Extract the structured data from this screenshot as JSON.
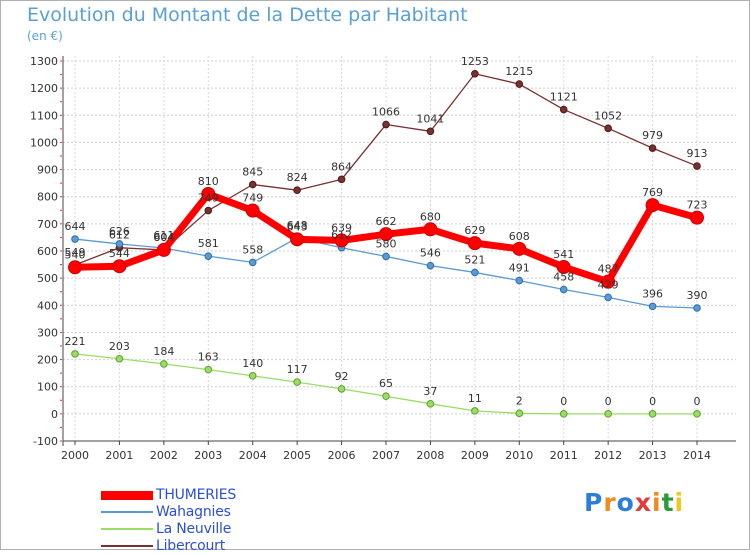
{
  "header": {
    "title": "Evolution du Montant de la Dette par Habitant",
    "unit": "(en €)"
  },
  "chart_data": {
    "type": "line",
    "title": "Evolution du Montant de la Dette par Habitant",
    "subtitle": "(en €)",
    "xlabel": "",
    "ylabel": "",
    "x": [
      2000,
      2001,
      2002,
      2003,
      2004,
      2005,
      2006,
      2007,
      2008,
      2009,
      2010,
      2011,
      2012,
      2013,
      2014
    ],
    "ylim": [
      -100,
      1300
    ],
    "yticks": [
      -100,
      0,
      100,
      200,
      300,
      400,
      500,
      600,
      700,
      800,
      900,
      1000,
      1100,
      1200,
      1300
    ],
    "grid": true,
    "legend_position": "bottom-left",
    "series": [
      {
        "name": "THUMERIES",
        "color": "#ff0000",
        "values": [
          540,
          544,
          604,
          810,
          749,
          643,
          639,
          662,
          680,
          629,
          608,
          541,
          487,
          769,
          723
        ]
      },
      {
        "name": "Wahagnies",
        "color": "#5b9bd5",
        "values": [
          644,
          626,
          611,
          581,
          558,
          648,
          612,
          580,
          546,
          521,
          491,
          458,
          429,
          396,
          390
        ]
      },
      {
        "name": "La Neuville",
        "color": "#99dd66",
        "values": [
          221,
          203,
          184,
          163,
          140,
          117,
          92,
          65,
          37,
          11,
          2,
          0,
          0,
          0,
          0
        ]
      },
      {
        "name": "Libercourt",
        "color": "#7b3030",
        "values": [
          549,
          612,
          604,
          749,
          845,
          824,
          864,
          1066,
          1041,
          1253,
          1215,
          1121,
          1052,
          979,
          913
        ]
      }
    ]
  },
  "legend": {
    "items": [
      {
        "label": "THUMERIES",
        "color": "#ff0000"
      },
      {
        "label": "Wahagnies",
        "color": "#5b9bd5"
      },
      {
        "label": "La Neuville",
        "color": "#99dd66"
      },
      {
        "label": "Libercourt",
        "color": "#7b3030"
      }
    ]
  },
  "brand": {
    "letters": [
      "P",
      "r",
      "o",
      "x",
      "i",
      "t",
      "i"
    ],
    "colors": [
      "#2b7fd6",
      "#f08a1c",
      "#2b7fd6",
      "#e23b3b",
      "#f08a1c",
      "#2b9a3a",
      "#f0c81c"
    ]
  }
}
